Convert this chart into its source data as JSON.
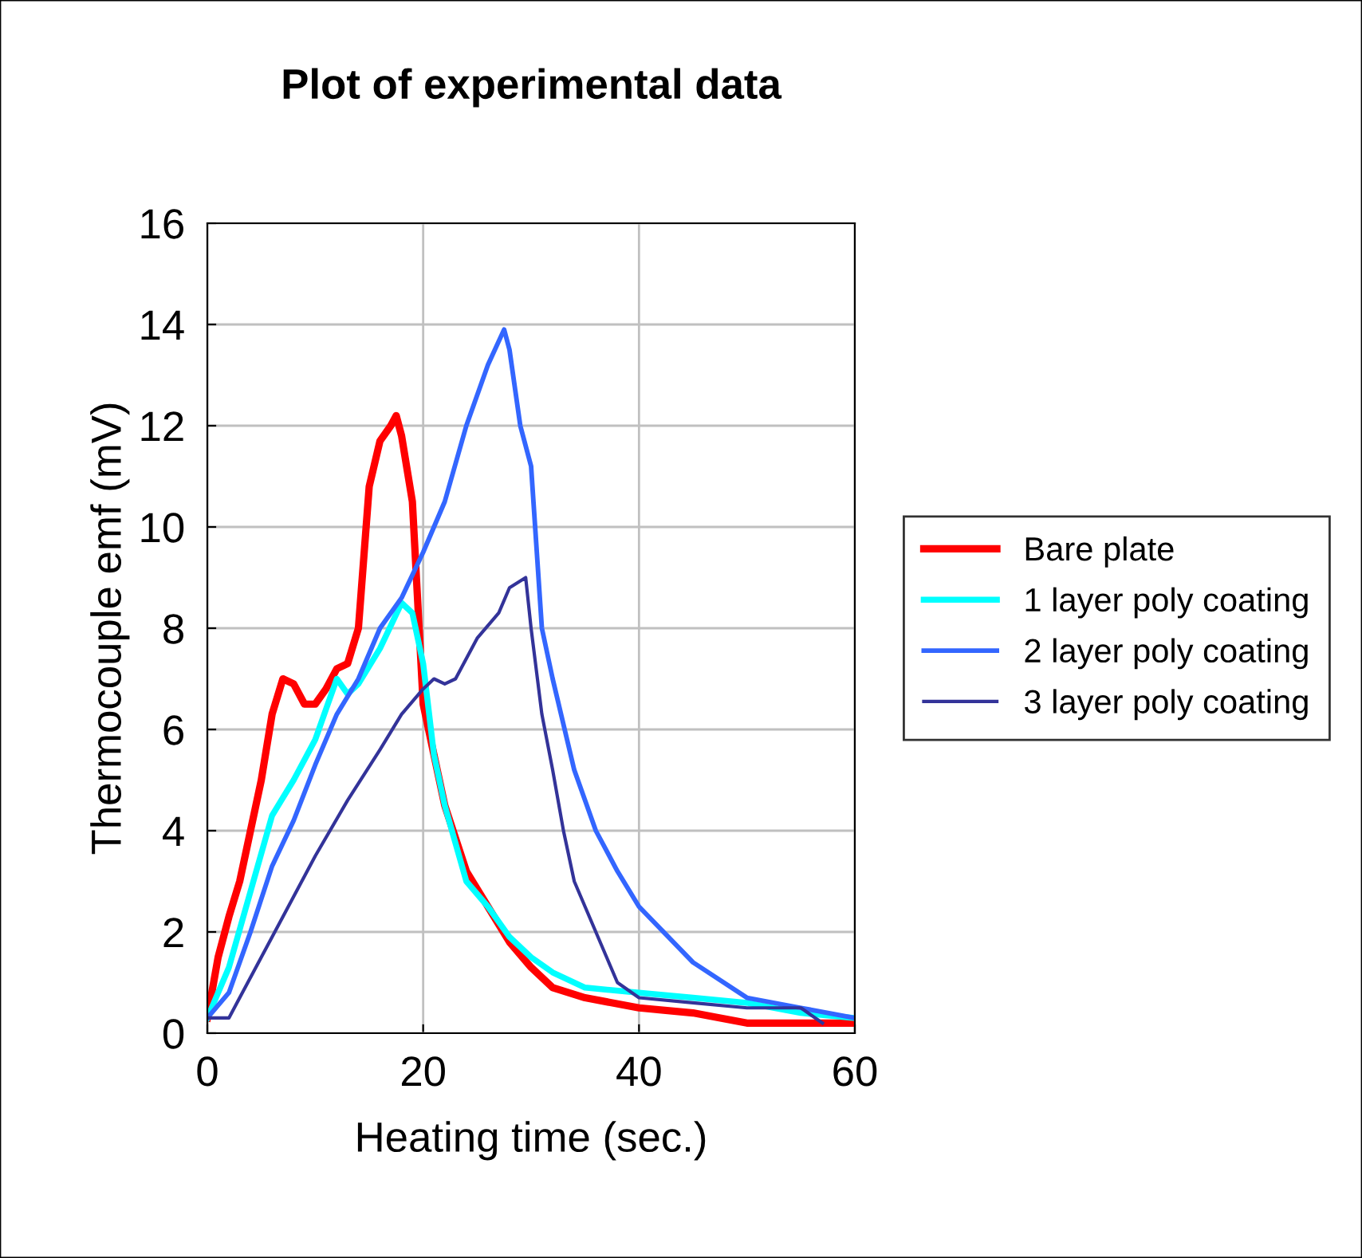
{
  "chart_data": {
    "type": "line",
    "title": "Plot of experimental data",
    "xlabel": "Heating time (sec.)",
    "ylabel": "Thermocouple emf (mV)",
    "xlim": [
      0,
      60
    ],
    "xticks": [
      0,
      20,
      40,
      60
    ],
    "ylim": [
      0,
      16
    ],
    "yticks": [
      0,
      2,
      4,
      6,
      8,
      10,
      12,
      14,
      16
    ],
    "grid": true,
    "legend": "right",
    "marker": "none",
    "line_style": "solid",
    "series": [
      {
        "name": "Bare plate",
        "color": "#ff0000",
        "x": [
          0,
          1,
          2,
          3,
          4,
          5,
          6,
          7,
          8,
          9,
          10,
          11,
          12,
          13,
          14,
          15,
          16,
          17,
          17.5,
          18,
          19,
          19.5,
          20,
          21,
          22,
          24,
          26,
          28,
          30,
          32,
          35,
          40,
          45,
          50,
          60
        ],
        "values": [
          0.3,
          1.5,
          2.3,
          3,
          4,
          5,
          6.3,
          7.0,
          6.9,
          6.5,
          6.5,
          6.8,
          7.2,
          7.3,
          8.0,
          10.8,
          11.7,
          12.0,
          12.2,
          11.8,
          10.5,
          8.5,
          6.5,
          5.5,
          4.5,
          3.2,
          2.5,
          1.8,
          1.3,
          0.9,
          0.7,
          0.5,
          0.4,
          0.2,
          0.2
        ]
      },
      {
        "name": "1 layer poly coating",
        "color": "#00ffff",
        "x": [
          0,
          2,
          4,
          6,
          8,
          10,
          11,
          12,
          13,
          14,
          16,
          18,
          19,
          20,
          21,
          22,
          24,
          26,
          28,
          30,
          32,
          35,
          40,
          45,
          50,
          55,
          60
        ],
        "values": [
          0.3,
          1.3,
          2.8,
          4.3,
          5.0,
          5.8,
          6.4,
          7.0,
          6.7,
          6.9,
          7.6,
          8.5,
          8.3,
          7.3,
          5.5,
          4.5,
          3.0,
          2.5,
          1.9,
          1.5,
          1.2,
          0.9,
          0.8,
          0.7,
          0.6,
          0.4,
          0.3
        ]
      },
      {
        "name": "2 layer poly coating",
        "color": "#3366ff",
        "x": [
          0,
          2,
          4,
          6,
          8,
          10,
          12,
          14,
          16,
          18,
          20,
          22,
          24,
          26,
          27.5,
          28,
          29,
          30,
          31,
          32,
          34,
          36,
          38,
          40,
          45,
          50,
          55,
          60
        ],
        "values": [
          0.3,
          0.8,
          2.0,
          3.3,
          4.2,
          5.3,
          6.3,
          7.0,
          8.0,
          8.6,
          9.5,
          10.5,
          12.0,
          13.2,
          13.9,
          13.5,
          12.0,
          11.2,
          8.0,
          7.0,
          5.2,
          4.0,
          3.2,
          2.5,
          1.4,
          0.7,
          0.5,
          0.3
        ]
      },
      {
        "name": "3 layer poly coating",
        "color": "#333399",
        "x": [
          0,
          2,
          3,
          5,
          7,
          10,
          13,
          16,
          18,
          20,
          21,
          22,
          23,
          25,
          27,
          28,
          29.5,
          30,
          31,
          32,
          33,
          34,
          35,
          37,
          38,
          40,
          45,
          50,
          55,
          57
        ],
        "values": [
          0.3,
          0.3,
          0.7,
          1.5,
          2.3,
          3.5,
          4.6,
          5.6,
          6.3,
          6.8,
          7.0,
          6.9,
          7.0,
          7.8,
          8.3,
          8.8,
          9.0,
          8.0,
          6.3,
          5.2,
          4.0,
          3.0,
          2.5,
          1.5,
          1.0,
          0.7,
          0.6,
          0.5,
          0.5,
          0.2
        ]
      }
    ]
  }
}
